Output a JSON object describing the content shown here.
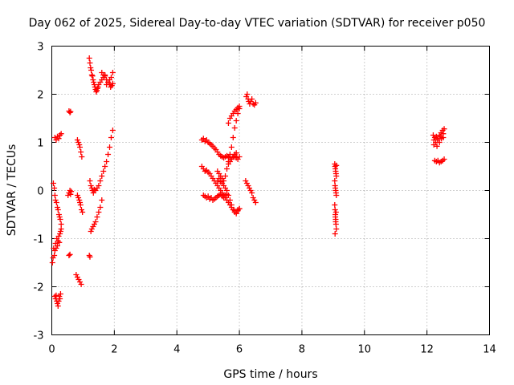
{
  "chart_data": {
    "type": "scatter",
    "title": "Day 062 of 2025, Sidereal Day-to-day VTEC variation (SDTVAR) for receiver p050",
    "xlabel": "GPS time / hours",
    "ylabel": "SDTVAR / TECUs",
    "xlim": [
      0,
      14
    ],
    "ylim": [
      -3,
      3
    ],
    "xticks": [
      "0",
      "2",
      "4",
      "6",
      "8",
      "10",
      "12",
      "14"
    ],
    "yticks": [
      "-3",
      "-2",
      "-1",
      "0",
      "1",
      "2",
      "3"
    ],
    "grid": true,
    "marker": "plus",
    "color": "#ff0000",
    "series": [
      {
        "x": [
          0.02,
          0.04,
          0.06,
          0.08,
          0.1,
          0.12,
          0.14,
          0.16,
          0.18,
          0.2,
          0.22,
          0.24,
          0.26,
          0.28,
          0.3,
          0.05,
          0.08,
          0.1,
          0.12,
          0.15,
          0.18,
          0.2,
          0.23,
          0.25,
          0.27,
          0.3,
          0.1,
          0.14,
          0.18,
          0.22,
          0.26,
          0.3,
          0.1,
          0.12,
          0.14,
          0.16,
          0.18,
          0.2,
          0.22,
          0.24,
          0.26,
          0.28,
          0.55,
          0.58,
          0.6,
          0.52,
          0.55,
          0.58,
          0.6,
          0.62,
          0.55,
          0.58,
          0.82,
          0.85,
          0.88,
          0.9,
          0.93,
          0.96,
          0.82,
          0.85,
          0.88,
          0.9,
          0.92,
          0.95,
          0.98,
          0.78,
          0.82,
          0.86,
          0.9,
          0.94,
          1.2,
          1.22,
          1.24,
          1.26,
          1.28,
          1.3,
          1.32,
          1.34,
          1.36,
          1.38,
          1.4,
          1.42,
          1.44,
          1.46,
          1.48,
          1.5,
          1.55,
          1.6,
          1.65,
          1.7,
          1.75,
          1.8,
          1.85,
          1.9,
          1.95,
          1.6,
          1.65,
          1.7,
          1.75,
          1.8,
          1.85,
          1.88,
          1.92,
          1.95,
          1.22,
          1.25,
          1.28,
          1.3,
          1.33,
          1.36,
          1.4,
          1.45,
          1.5,
          1.55,
          1.6,
          1.65,
          1.7,
          1.75,
          1.8,
          1.85,
          1.9,
          1.95,
          1.25,
          1.28,
          1.32,
          1.36,
          1.4,
          1.45,
          1.5,
          1.55,
          1.6,
          1.2,
          1.22
        ],
        "y": [
          -1.5,
          -1.4,
          -1.2,
          -1.35,
          -1.25,
          -1.1,
          -1.2,
          -1.0,
          -1.15,
          -1.05,
          -0.95,
          -1.08,
          -0.9,
          -0.85,
          -0.8,
          0.15,
          0.05,
          -0.1,
          -0.2,
          -0.25,
          -0.35,
          -0.4,
          -0.5,
          -0.55,
          -0.6,
          -0.7,
          1.1,
          1.05,
          1.12,
          1.08,
          1.15,
          1.18,
          -2.2,
          -2.25,
          -2.18,
          -2.3,
          -2.35,
          -2.4,
          -2.3,
          -2.2,
          -2.25,
          -2.15,
          1.65,
          1.62,
          1.64,
          -0.1,
          -0.05,
          0.0,
          -0.08,
          -0.02,
          -1.35,
          -1.33,
          1.05,
          1.0,
          0.95,
          0.9,
          0.8,
          0.7,
          -0.1,
          -0.15,
          -0.2,
          -0.25,
          -0.3,
          -0.4,
          -0.45,
          -1.75,
          -1.8,
          -1.85,
          -1.9,
          -1.95,
          2.75,
          2.65,
          2.55,
          2.5,
          2.4,
          2.38,
          2.3,
          2.25,
          2.2,
          2.15,
          2.1,
          2.05,
          2.08,
          2.12,
          2.15,
          2.2,
          2.25,
          2.3,
          2.35,
          2.4,
          2.2,
          2.25,
          2.3,
          2.35,
          2.45,
          2.45,
          2.4,
          2.38,
          2.3,
          2.25,
          2.2,
          2.15,
          2.18,
          2.22,
          0.2,
          0.1,
          0.05,
          0.0,
          -0.05,
          0.02,
          0.0,
          0.05,
          0.1,
          0.2,
          0.3,
          0.4,
          0.5,
          0.6,
          0.75,
          0.9,
          1.1,
          1.25,
          -0.85,
          -0.8,
          -0.75,
          -0.7,
          -0.65,
          -0.55,
          -0.45,
          -0.35,
          -0.2,
          -1.35,
          -1.38
        ]
      },
      {
        "x": [
          4.8,
          4.85,
          4.9,
          4.95,
          5.0,
          5.05,
          5.1,
          5.15,
          5.2,
          5.25,
          5.3,
          5.35,
          5.4,
          5.45,
          5.5,
          5.55,
          5.6,
          5.65,
          5.7,
          5.75,
          5.8,
          5.85,
          5.9,
          5.95,
          6.0,
          4.8,
          4.85,
          4.9,
          4.95,
          5.0,
          5.05,
          5.1,
          5.15,
          5.2,
          5.25,
          5.3,
          5.35,
          5.4,
          5.45,
          5.5,
          5.55,
          5.6,
          5.65,
          5.7,
          5.75,
          5.8,
          5.85,
          5.9,
          5.95,
          6.0,
          4.85,
          4.9,
          4.95,
          5.0,
          5.05,
          5.1,
          5.15,
          5.2,
          5.25,
          5.3,
          5.35,
          5.4,
          5.45,
          5.5,
          5.55,
          5.6,
          5.65,
          5.7,
          5.75,
          5.8,
          5.85,
          5.9,
          5.3,
          5.35,
          5.4,
          5.45,
          5.5,
          5.55,
          5.6,
          5.65,
          5.7,
          5.75,
          5.8,
          5.85,
          5.9,
          5.95,
          6.0,
          5.3,
          5.35,
          5.4,
          5.45,
          5.5,
          5.55,
          5.6,
          5.65,
          5.7,
          5.75,
          5.8,
          5.85,
          5.9,
          5.95,
          6.0,
          6.22,
          6.25,
          6.28,
          6.3,
          6.33,
          6.36,
          6.4,
          6.44,
          6.48,
          6.52,
          6.2,
          6.24,
          6.28,
          6.32,
          6.36,
          6.4,
          6.44,
          6.48,
          6.52,
          5.65,
          5.7,
          5.75,
          5.8,
          5.85,
          5.9,
          5.95,
          6.0
        ],
        "y": [
          1.05,
          1.08,
          1.02,
          1.05,
          1.0,
          0.98,
          0.95,
          0.92,
          0.88,
          0.85,
          0.8,
          0.75,
          0.72,
          0.7,
          0.68,
          0.7,
          0.72,
          0.7,
          0.68,
          0.65,
          0.7,
          0.72,
          0.68,
          0.65,
          0.7,
          0.5,
          0.45,
          0.4,
          0.42,
          0.38,
          0.35,
          0.3,
          0.25,
          0.2,
          0.15,
          0.1,
          0.05,
          0.0,
          -0.05,
          -0.1,
          -0.15,
          -0.2,
          -0.25,
          -0.3,
          -0.35,
          -0.4,
          -0.42,
          -0.45,
          -0.4,
          -0.38,
          -0.1,
          -0.12,
          -0.15,
          -0.12,
          -0.18,
          -0.15,
          -0.2,
          -0.18,
          -0.15,
          -0.12,
          -0.1,
          -0.08,
          -0.12,
          -0.15,
          -0.1,
          -0.08,
          0.55,
          0.6,
          0.65,
          0.7,
          0.75,
          0.78,
          0.4,
          0.35,
          0.3,
          0.25,
          0.2,
          0.3,
          0.45,
          0.6,
          0.75,
          0.9,
          1.1,
          1.3,
          1.45,
          1.6,
          1.7,
          0.2,
          0.25,
          0.18,
          0.15,
          0.1,
          0.05,
          0.0,
          -0.1,
          -0.2,
          -0.3,
          -0.4,
          -0.45,
          -0.48,
          -0.42,
          -0.38,
          1.95,
          2.0,
          1.9,
          1.85,
          1.8,
          1.85,
          1.9,
          1.8,
          1.78,
          1.82,
          0.2,
          0.15,
          0.1,
          0.05,
          0.0,
          -0.05,
          -0.15,
          -0.2,
          -0.25,
          1.4,
          1.5,
          1.55,
          1.6,
          1.65,
          1.68,
          1.72,
          1.75
        ]
      },
      {
        "x": [
          9.05,
          9.06,
          9.07,
          9.08,
          9.09,
          9.1,
          9.05,
          9.06,
          9.07,
          9.08,
          9.09,
          9.1,
          9.05,
          9.06,
          9.07,
          9.08,
          9.09,
          9.1,
          9.06,
          9.07,
          9.08,
          9.09,
          9.1
        ],
        "y": [
          0.55,
          0.5,
          0.45,
          0.4,
          0.35,
          0.3,
          0.2,
          0.1,
          0.05,
          0.0,
          -0.05,
          -0.1,
          -0.3,
          -0.4,
          -0.5,
          -0.6,
          -0.7,
          -0.8,
          -0.9,
          -0.55,
          -0.65,
          -0.45,
          0.52
        ]
      },
      {
        "x": [
          12.2,
          12.25,
          12.3,
          12.35,
          12.4,
          12.45,
          12.5,
          12.55,
          12.22,
          12.28,
          12.34,
          12.4,
          12.46,
          12.52,
          12.25,
          12.3,
          12.35,
          12.4,
          12.45,
          12.5,
          12.55,
          12.22,
          12.32,
          12.42,
          12.52
        ],
        "y": [
          1.15,
          1.1,
          1.12,
          1.08,
          1.15,
          1.2,
          1.25,
          1.28,
          0.95,
          1.0,
          1.05,
          1.0,
          1.08,
          1.1,
          0.62,
          0.6,
          0.62,
          0.58,
          0.6,
          0.62,
          0.65,
          1.05,
          0.92,
          1.12,
          1.18
        ]
      }
    ]
  }
}
